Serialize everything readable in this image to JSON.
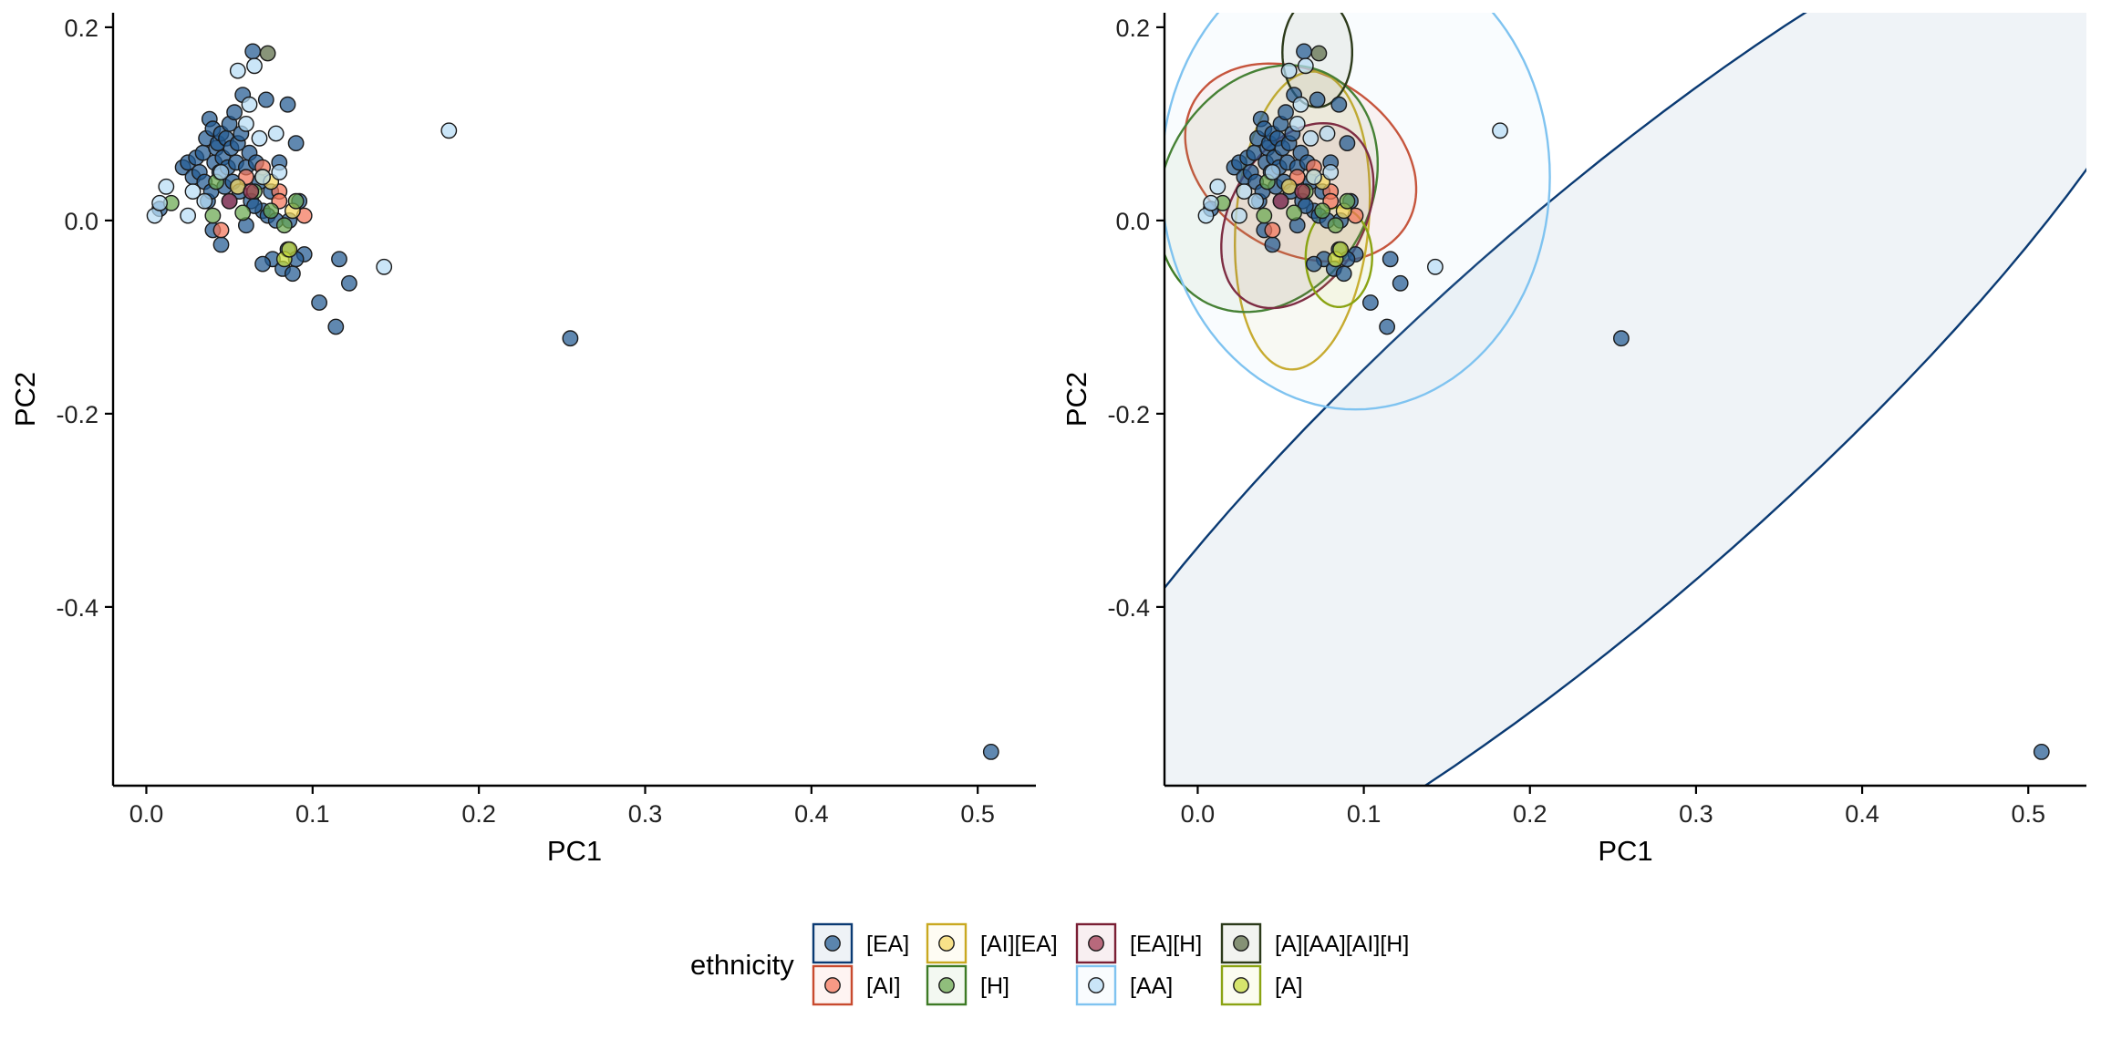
{
  "chart_data": [
    {
      "type": "scatter",
      "panel": "left",
      "xlabel": "PC1",
      "ylabel": "PC2",
      "xlim": [
        -0.02,
        0.535
      ],
      "ylim": [
        -0.585,
        0.215
      ],
      "xticks": [
        "0.0",
        "0.1",
        "0.2",
        "0.3",
        "0.4",
        "0.5"
      ],
      "yticks": [
        "0.2",
        "0.0",
        "-0.2",
        "-0.4"
      ],
      "grid": false,
      "ellipses": false
    },
    {
      "type": "scatter",
      "panel": "right",
      "xlabel": "PC1",
      "ylabel": "PC2",
      "xlim": [
        -0.02,
        0.535
      ],
      "ylim": [
        -0.585,
        0.215
      ],
      "xticks": [
        "0.0",
        "0.1",
        "0.2",
        "0.3",
        "0.4",
        "0.5"
      ],
      "yticks": [
        "0.2",
        "0.0",
        "-0.2",
        "-0.4"
      ],
      "grid": false,
      "ellipses": true
    }
  ],
  "series": [
    {
      "name": "[EA]",
      "color": "#235a92",
      "outline": "#0a3a73",
      "points": [
        [
          0.008,
          0.012
        ],
        [
          0.022,
          0.055
        ],
        [
          0.025,
          0.06
        ],
        [
          0.028,
          0.045
        ],
        [
          0.03,
          0.065
        ],
        [
          0.032,
          0.05
        ],
        [
          0.034,
          0.07
        ],
        [
          0.035,
          0.04
        ],
        [
          0.036,
          0.085
        ],
        [
          0.037,
          0.02
        ],
        [
          0.038,
          0.105
        ],
        [
          0.039,
          0.03
        ],
        [
          0.04,
          0.095
        ],
        [
          0.041,
          0.06
        ],
        [
          0.042,
          0.075
        ],
        [
          0.043,
          0.08
        ],
        [
          0.044,
          0.05
        ],
        [
          0.045,
          0.09
        ],
        [
          0.046,
          0.065
        ],
        [
          0.047,
          0.035
        ],
        [
          0.048,
          0.085
        ],
        [
          0.049,
          0.055
        ],
        [
          0.05,
          0.1
        ],
        [
          0.051,
          0.075
        ],
        [
          0.052,
          0.04
        ],
        [
          0.053,
          0.112
        ],
        [
          0.054,
          0.06
        ],
        [
          0.055,
          0.08
        ],
        [
          0.056,
          0.03
        ],
        [
          0.057,
          0.09
        ],
        [
          0.058,
          0.13
        ],
        [
          0.06,
          0.055
        ],
        [
          0.062,
          0.07
        ],
        [
          0.063,
          0.02
        ],
        [
          0.064,
          0.175
        ],
        [
          0.066,
          0.06
        ],
        [
          0.068,
          0.04
        ],
        [
          0.07,
          0.01
        ],
        [
          0.072,
          0.125
        ],
        [
          0.073,
          0.005
        ],
        [
          0.075,
          0.03
        ],
        [
          0.076,
          -0.04
        ],
        [
          0.078,
          0.0
        ],
        [
          0.08,
          0.06
        ],
        [
          0.082,
          -0.05
        ],
        [
          0.085,
          0.12
        ],
        [
          0.086,
          0.0
        ],
        [
          0.088,
          -0.055
        ],
        [
          0.09,
          0.08
        ],
        [
          0.092,
          0.02
        ],
        [
          0.095,
          -0.035
        ],
        [
          0.104,
          -0.085
        ],
        [
          0.114,
          -0.11
        ],
        [
          0.116,
          -0.04
        ],
        [
          0.122,
          -0.065
        ],
        [
          0.255,
          -0.122
        ],
        [
          0.508,
          -0.55
        ],
        [
          0.04,
          -0.01
        ],
        [
          0.045,
          -0.025
        ],
        [
          0.05,
          0.02
        ],
        [
          0.06,
          -0.005
        ],
        [
          0.065,
          0.015
        ],
        [
          0.07,
          -0.045
        ],
        [
          0.085,
          -0.03
        ],
        [
          0.09,
          -0.04
        ]
      ],
      "ellipse": {
        "cx": 0.245,
        "cy": -0.192,
        "rx": 0.466,
        "ry": 0.115,
        "angle_deg": 41.5
      }
    },
    {
      "name": "[AI]",
      "color": "#f4765a",
      "outline": "#c84a2e",
      "points": [
        [
          0.045,
          -0.01
        ],
        [
          0.06,
          0.045
        ],
        [
          0.07,
          0.055
        ],
        [
          0.08,
          0.03
        ],
        [
          0.095,
          0.005
        ],
        [
          0.08,
          0.02
        ]
      ],
      "ellipse": {
        "cx": 0.062,
        "cy": 0.06,
        "rx": 0.074,
        "ry": 0.054,
        "angle_deg": -30
      }
    },
    {
      "name": "[AI][EA]",
      "color": "#f5d860",
      "outline": "#c9a820",
      "points": [
        [
          0.055,
          0.035
        ],
        [
          0.07,
          0.045
        ],
        [
          0.075,
          0.04
        ],
        [
          0.088,
          0.01
        ]
      ],
      "ellipse": {
        "cx": 0.063,
        "cy": 0.0,
        "rx": 0.04,
        "ry": 0.09,
        "angle_deg": -5
      }
    },
    {
      "name": "[H]",
      "color": "#6aa84f",
      "outline": "#3d7a25",
      "points": [
        [
          0.015,
          0.018
        ],
        [
          0.04,
          0.005
        ],
        [
          0.042,
          0.04
        ],
        [
          0.058,
          0.008
        ],
        [
          0.065,
          0.03
        ],
        [
          0.075,
          0.01
        ],
        [
          0.09,
          0.02
        ],
        [
          0.083,
          -0.005
        ]
      ],
      "ellipse": {
        "cx": 0.042,
        "cy": 0.033,
        "rx": 0.062,
        "ry": 0.078,
        "angle_deg": -30
      }
    },
    {
      "name": "[EA][H]",
      "color": "#a0354f",
      "outline": "#7a1f35",
      "points": [
        [
          0.05,
          0.02
        ],
        [
          0.063,
          0.03
        ]
      ],
      "ellipse": {
        "cx": 0.06,
        "cy": 0.005,
        "rx": 0.04,
        "ry": 0.06,
        "angle_deg": -30
      }
    },
    {
      "name": "[AA]",
      "color": "#b7dcf5",
      "outline": "#2e5d85",
      "points": [
        [
          0.005,
          0.005
        ],
        [
          0.008,
          0.018
        ],
        [
          0.012,
          0.035
        ],
        [
          0.025,
          0.005
        ],
        [
          0.028,
          0.03
        ],
        [
          0.035,
          0.02
        ],
        [
          0.045,
          0.05
        ],
        [
          0.055,
          0.155
        ],
        [
          0.06,
          0.1
        ],
        [
          0.062,
          0.12
        ],
        [
          0.065,
          0.16
        ],
        [
          0.068,
          0.085
        ],
        [
          0.07,
          0.045
        ],
        [
          0.078,
          0.09
        ],
        [
          0.08,
          0.05
        ],
        [
          0.143,
          -0.048
        ],
        [
          0.182,
          0.093
        ]
      ],
      "ellipse": {
        "cx": 0.095,
        "cy": 0.045,
        "rx": 0.117,
        "ry": 0.14,
        "angle_deg": 0
      }
    },
    {
      "name": "[A][AA][AI][H]",
      "color": "#5a6b45",
      "outline": "#2c3a1a",
      "points": [
        [
          0.073,
          0.173
        ]
      ],
      "ellipse": {
        "cx": 0.072,
        "cy": 0.174,
        "rx": 0.021,
        "ry": 0.033,
        "angle_deg": 0
      }
    },
    {
      "name": "[A]",
      "color": "#c7dd3a",
      "outline": "#8aa312",
      "points": [
        [
          0.083,
          -0.04
        ],
        [
          0.086,
          -0.03
        ]
      ],
      "ellipse": {
        "cx": 0.085,
        "cy": -0.038,
        "rx": 0.02,
        "ry": 0.03,
        "angle_deg": 0
      }
    }
  ],
  "legend": {
    "title": "ethnicity",
    "placement": "bottom",
    "rows": [
      [
        "[EA]",
        "[AI][EA]",
        "[EA][H]",
        "[A][AA][AI][H]"
      ],
      [
        "[AI]",
        "[H]",
        "[AA]",
        "[A]"
      ]
    ]
  }
}
